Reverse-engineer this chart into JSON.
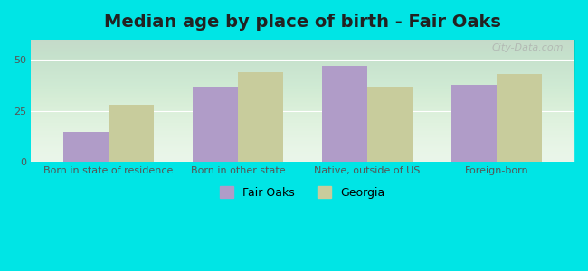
{
  "title": "Median age by place of birth - Fair Oaks",
  "categories": [
    "Born in state of residence",
    "Born in other state",
    "Native, outside of US",
    "Foreign-born"
  ],
  "fair_oaks_values": [
    15,
    37,
    47,
    38
  ],
  "georgia_values": [
    28,
    44,
    37,
    43
  ],
  "fair_oaks_color": "#b09cc8",
  "georgia_color": "#c8cc9c",
  "background_color": "#e8f5e8",
  "outer_background": "#00e5e5",
  "ylim": [
    0,
    60
  ],
  "yticks": [
    0,
    25,
    50
  ],
  "bar_width": 0.35,
  "title_fontsize": 14,
  "tick_fontsize": 8,
  "legend_labels": [
    "Fair Oaks",
    "Georgia"
  ],
  "watermark": "City-Data.com"
}
